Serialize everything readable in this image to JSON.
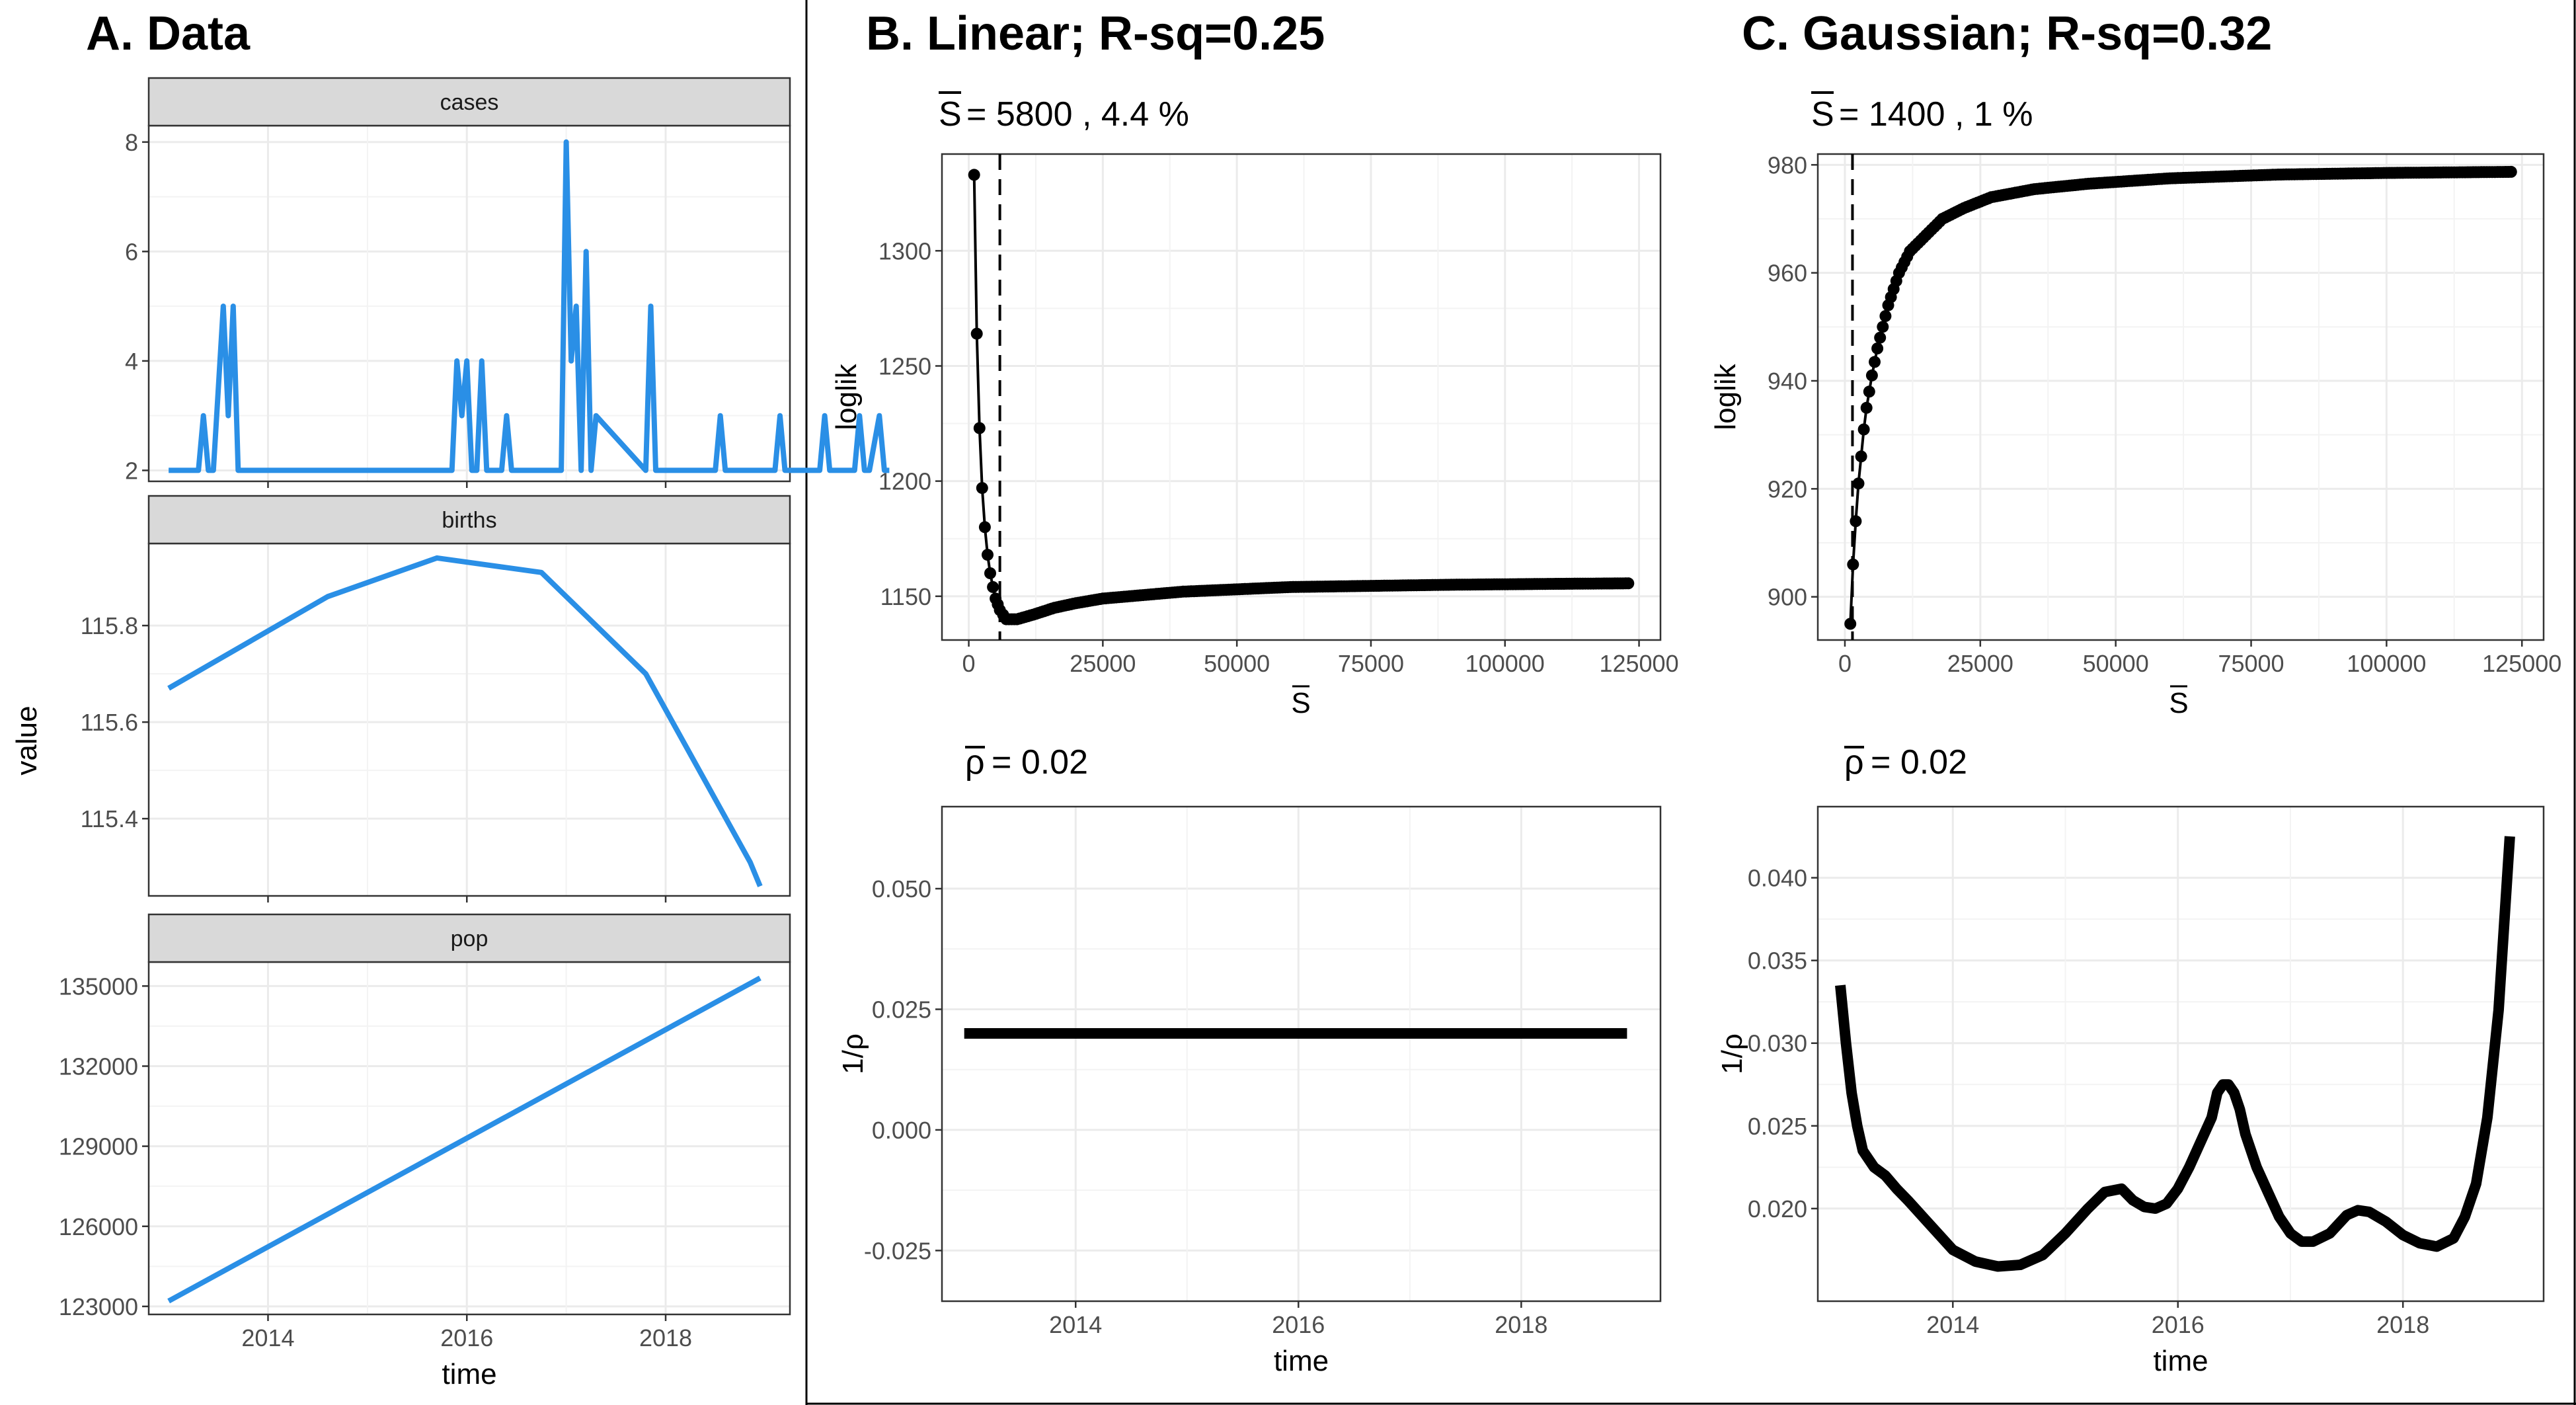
{
  "panels": {
    "a_title": "A. Data",
    "b_title": "B. Linear; R-sq=0.25",
    "c_title": "C. Gaussian; R-sq=0.32",
    "b_s_annot": "= 5800 , 4.4 %",
    "c_s_annot": "= 1400 , 1 %",
    "b_rho_annot": "= 0.02",
    "c_rho_annot": "= 0.02",
    "s_symbol": "S",
    "rho_symbol": "ρ"
  },
  "colors": {
    "series_blue": "#2a8fe6",
    "black": "#000000",
    "strip_fill": "#d9d9d9",
    "grid": "#ebebeb"
  },
  "chart_data": [
    {
      "id": "cases",
      "type": "line",
      "strip": "cases",
      "color": "#2a8fe6",
      "x": [
        2013.0,
        2013.3,
        2013.35,
        2013.4,
        2013.45,
        2013.55,
        2013.6,
        2013.65,
        2013.7,
        2013.75,
        2013.8,
        2013.85,
        2015.85,
        2015.9,
        2015.95,
        2016.0,
        2016.05,
        2016.1,
        2016.15,
        2016.2,
        2016.35,
        2016.4,
        2016.45,
        2016.75,
        2016.85,
        2016.9,
        2016.95,
        2017.0,
        2017.05,
        2017.1,
        2017.15,
        2017.2,
        2017.25,
        2017.3,
        2017.8,
        2017.85,
        2017.9,
        2018.5,
        2018.55,
        2018.6,
        2019.1,
        2019.15,
        2019.2,
        2019.55,
        2019.6,
        2019.65,
        2019.9,
        2019.95,
        2020.0,
        2020.05,
        2020.15,
        2020.2,
        2020.25
      ],
      "values": [
        2,
        2,
        3,
        2,
        2,
        5,
        3,
        5,
        2,
        2,
        2,
        2,
        2,
        4,
        3,
        4,
        2,
        2,
        4,
        2,
        2,
        3,
        2,
        2,
        2,
        2,
        2,
        8,
        4,
        5,
        2,
        6,
        2,
        3,
        2,
        5,
        2,
        2,
        3,
        2,
        2,
        3,
        2,
        2,
        3,
        2,
        2,
        3,
        2,
        2,
        3,
        2,
        2
      ],
      "ylim": [
        1.8,
        8.3
      ],
      "yticks": [
        "2",
        "4",
        "6",
        "8"
      ],
      "ytick_values": [
        2,
        4,
        6,
        8
      ]
    },
    {
      "id": "births",
      "type": "line",
      "strip": "births",
      "color": "#2a8fe6",
      "x": [
        2013.0,
        2014.6,
        2015.7,
        2016.75,
        2017.8,
        2018.85,
        2018.95
      ],
      "values": [
        115.67,
        115.86,
        115.94,
        115.91,
        115.7,
        115.31,
        115.26
      ],
      "ylim": [
        115.24,
        115.97
      ],
      "yticks": [
        "115.4",
        "115.6",
        "115.8"
      ],
      "ytick_values": [
        115.4,
        115.6,
        115.8
      ]
    },
    {
      "id": "pop",
      "type": "line",
      "strip": "pop",
      "color": "#2a8fe6",
      "x": [
        2013.0,
        2018.95
      ],
      "values": [
        123200,
        135300
      ],
      "ylim": [
        122700,
        135900
      ],
      "yticks": [
        "123000",
        "126000",
        "129000",
        "132000",
        "135000"
      ],
      "ytick_values": [
        123000,
        126000,
        129000,
        132000,
        135000
      ],
      "xticks": [
        "2014",
        "2016",
        "2018"
      ],
      "xtick_values": [
        2014,
        2016,
        2018
      ],
      "xlabel": "time",
      "ylabel": "value"
    },
    {
      "id": "b_loglik",
      "type": "line",
      "x": [
        1000,
        1500,
        2000,
        2500,
        3000,
        3500,
        4000,
        4500,
        5000,
        5800,
        7000,
        9000,
        12000,
        16000,
        20000,
        25000,
        30000,
        40000,
        50000,
        60000,
        75000,
        90000,
        100000,
        110000,
        123000
      ],
      "values": [
        1333,
        1264,
        1223,
        1197,
        1180,
        1168,
        1160,
        1154,
        1149,
        1144,
        1140,
        1140,
        1142,
        1145,
        1147,
        1149,
        1150,
        1152,
        1153,
        1154,
        1154.5,
        1155,
        1155.2,
        1155.4,
        1155.6
      ],
      "ylim": [
        1131,
        1342
      ],
      "xlim": [
        -5000,
        129000
      ],
      "yticks": [
        "1150",
        "1200",
        "1250",
        "1300"
      ],
      "ytick_values": [
        1150,
        1200,
        1250,
        1300
      ],
      "xticks": [
        "0",
        "25000",
        "50000",
        "75000",
        "100000",
        "125000"
      ],
      "xtick_values": [
        0,
        25000,
        50000,
        75000,
        100000,
        125000
      ],
      "vline": 5800,
      "ylabel": "loglik"
    },
    {
      "id": "c_loglik",
      "type": "line",
      "x": [
        1000,
        1500,
        2000,
        2500,
        3000,
        3500,
        4000,
        4500,
        5000,
        6000,
        7000,
        8000,
        10000,
        12000,
        15000,
        18000,
        22000,
        27000,
        35000,
        45000,
        60000,
        80000,
        100000,
        123000
      ],
      "values": [
        895,
        906,
        914,
        921,
        926,
        931,
        935,
        938,
        941,
        946,
        950,
        954,
        960,
        964,
        967,
        970,
        972,
        974,
        975.5,
        976.5,
        977.5,
        978.2,
        978.5,
        978.7
      ],
      "ylim": [
        892,
        982
      ],
      "xlim": [
        -5000,
        129000
      ],
      "yticks": [
        "900",
        "920",
        "940",
        "960",
        "980"
      ],
      "ytick_values": [
        900,
        920,
        940,
        960,
        980
      ],
      "xticks": [
        "0",
        "25000",
        "50000",
        "75000",
        "100000",
        "125000"
      ],
      "xtick_values": [
        0,
        25000,
        50000,
        75000,
        100000,
        125000
      ],
      "vline": 1400,
      "ylabel": "loglik"
    },
    {
      "id": "b_rho",
      "type": "line",
      "x": [
        2013.0,
        2018.95
      ],
      "values": [
        0.02,
        0.02
      ],
      "ylim": [
        -0.0355,
        0.067
      ],
      "xlim": [
        2012.8,
        2019.25
      ],
      "yticks": [
        "-0.025",
        "0.000",
        "0.025",
        "0.050"
      ],
      "ytick_values": [
        -0.025,
        0.0,
        0.025,
        0.05
      ],
      "xticks": [
        "2014",
        "2016",
        "2018"
      ],
      "xtick_values": [
        2014,
        2016,
        2018
      ],
      "xlabel": "time",
      "ylabel": "1/ρ"
    },
    {
      "id": "c_rho",
      "type": "line",
      "x": [
        2013.0,
        2013.05,
        2013.1,
        2013.15,
        2013.2,
        2013.3,
        2013.4,
        2013.5,
        2013.6,
        2013.8,
        2014.0,
        2014.2,
        2014.4,
        2014.6,
        2014.8,
        2015.0,
        2015.2,
        2015.35,
        2015.5,
        2015.6,
        2015.7,
        2015.8,
        2015.9,
        2016.0,
        2016.1,
        2016.2,
        2016.3,
        2016.35,
        2016.4,
        2016.45,
        2016.5,
        2016.55,
        2016.6,
        2016.7,
        2016.8,
        2016.9,
        2017.0,
        2017.1,
        2017.2,
        2017.35,
        2017.5,
        2017.6,
        2017.7,
        2017.85,
        2018.0,
        2018.15,
        2018.3,
        2018.45,
        2018.55,
        2018.65,
        2018.75,
        2018.85,
        2018.95
      ],
      "values": [
        0.0335,
        0.03,
        0.027,
        0.025,
        0.0235,
        0.0225,
        0.022,
        0.0212,
        0.0205,
        0.019,
        0.0175,
        0.0168,
        0.0165,
        0.0166,
        0.0172,
        0.0185,
        0.02,
        0.021,
        0.0212,
        0.0205,
        0.0201,
        0.02,
        0.0203,
        0.0212,
        0.0225,
        0.024,
        0.0255,
        0.027,
        0.0275,
        0.0275,
        0.027,
        0.026,
        0.0245,
        0.0225,
        0.021,
        0.0195,
        0.0185,
        0.018,
        0.018,
        0.0185,
        0.0196,
        0.0199,
        0.0198,
        0.0192,
        0.0184,
        0.0179,
        0.0177,
        0.0182,
        0.0195,
        0.0215,
        0.0255,
        0.032,
        0.0425
      ],
      "ylim": [
        0.0144,
        0.0443
      ],
      "xlim": [
        2012.8,
        2019.25
      ],
      "yticks": [
        "0.020",
        "0.025",
        "0.030",
        "0.035",
        "0.040"
      ],
      "ytick_values": [
        0.02,
        0.025,
        0.03,
        0.035,
        0.04
      ],
      "xticks": [
        "2014",
        "2016",
        "2018"
      ],
      "xtick_values": [
        2014,
        2016,
        2018
      ],
      "xlabel": "time",
      "ylabel": "1/ρ"
    }
  ]
}
